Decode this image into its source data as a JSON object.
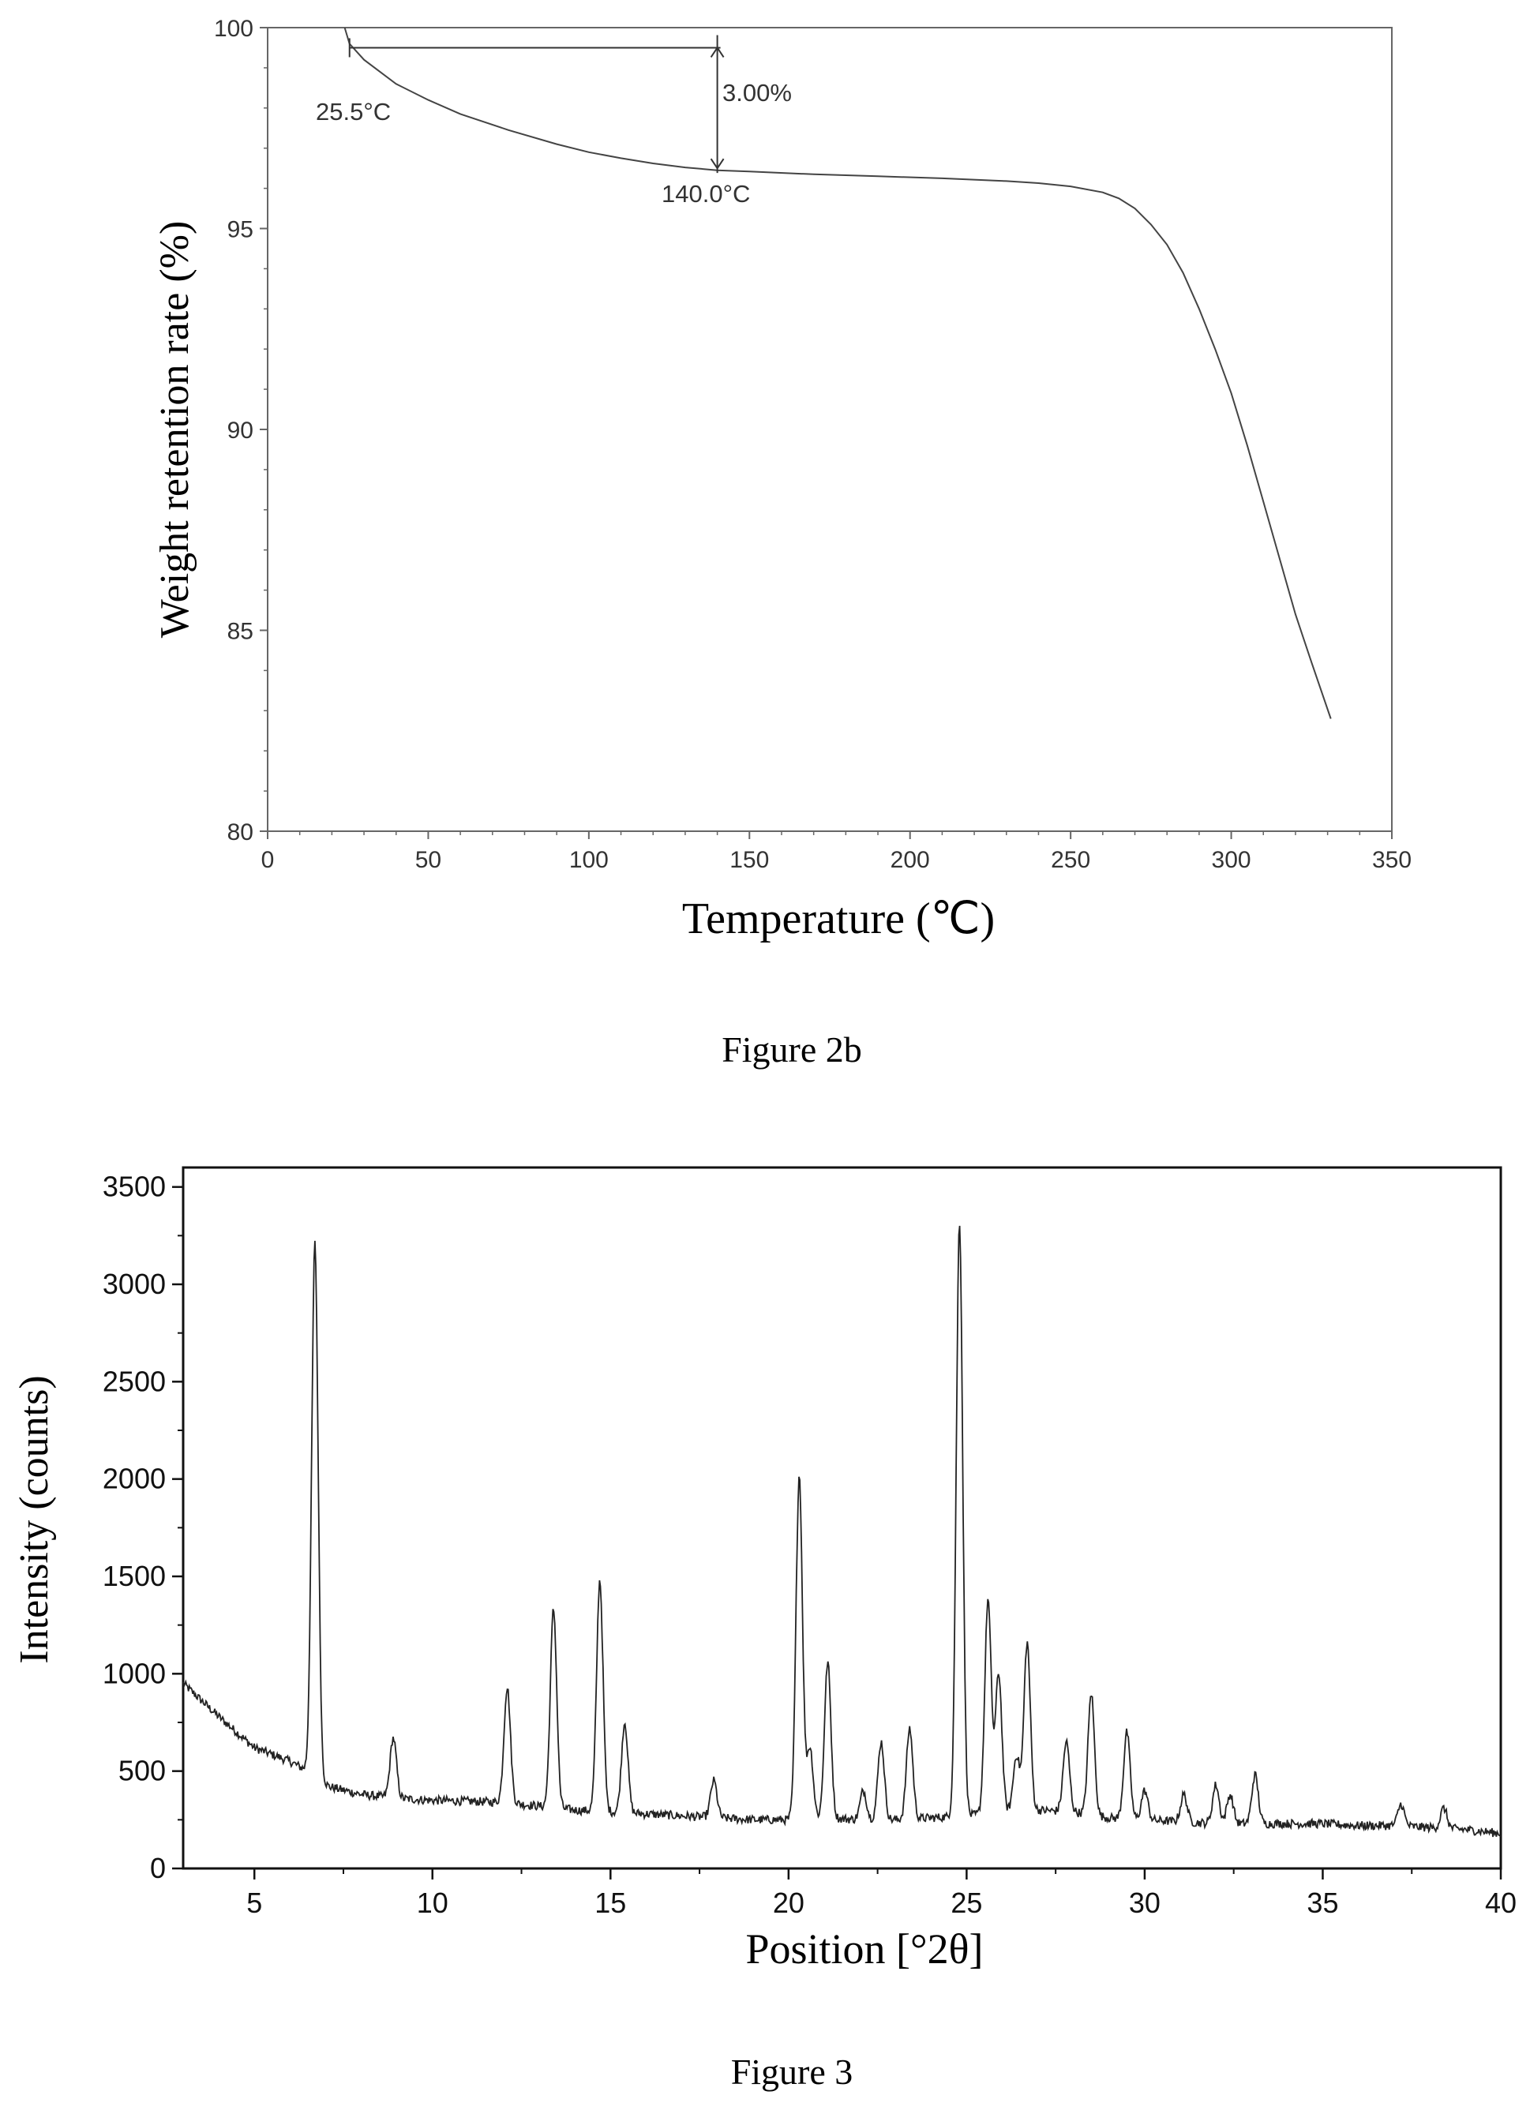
{
  "chart_data": [
    {
      "type": "line",
      "xlabel": "Temperature (℃)",
      "ylabel": "Weight retention rate (%)",
      "caption": "Figure 2b",
      "xlim": [
        0,
        350
      ],
      "ylim": [
        80,
        100
      ],
      "xticks": [
        0,
        50,
        100,
        150,
        200,
        250,
        300,
        350
      ],
      "yticks": [
        80,
        85,
        90,
        95,
        100
      ],
      "grid": false,
      "series": [
        {
          "x": [
            24,
            25.5,
            30,
            40,
            50,
            60,
            75,
            90,
            100,
            110,
            120,
            130,
            140,
            150,
            170,
            190,
            210,
            230,
            240,
            250,
            260,
            265,
            270,
            275,
            280,
            285,
            290,
            295,
            300,
            305,
            310,
            315,
            320,
            325,
            331
          ],
          "y": [
            100.0,
            99.6,
            99.2,
            98.6,
            98.2,
            97.85,
            97.45,
            97.1,
            96.9,
            96.75,
            96.62,
            96.52,
            96.45,
            96.42,
            96.35,
            96.3,
            96.25,
            96.18,
            96.13,
            96.05,
            95.9,
            95.75,
            95.5,
            95.1,
            94.6,
            93.9,
            93.0,
            92.0,
            90.9,
            89.6,
            88.2,
            86.8,
            85.4,
            84.2,
            82.8
          ]
        }
      ],
      "annotations": {
        "start_label": "25.5°C",
        "end_label": "140.0°C",
        "loss_label": "3.00%",
        "start_x": 25.5,
        "end_x": 140.0,
        "ref_y": 99.5,
        "end_y": 96.5
      }
    },
    {
      "type": "line",
      "xlabel": "Position [°2θ]",
      "ylabel": "Intensity (counts)",
      "caption": "Figure 3",
      "xlim": [
        3,
        40
      ],
      "ylim": [
        0,
        3600
      ],
      "xticks": [
        5,
        10,
        15,
        20,
        25,
        30,
        35,
        40
      ],
      "yticks": [
        0,
        500,
        1000,
        1500,
        2000,
        2500,
        3000,
        3500
      ],
      "grid": false,
      "series": [
        {
          "baseline": [
            [
              3,
              950
            ],
            [
              4,
              780
            ],
            [
              5,
              620
            ],
            [
              6,
              550
            ],
            [
              6.5,
              500
            ],
            [
              7.1,
              420
            ],
            [
              8,
              380
            ],
            [
              9,
              360
            ],
            [
              10,
              350
            ],
            [
              11,
              345
            ],
            [
              12,
              340
            ],
            [
              13,
              320
            ],
            [
              14,
              300
            ],
            [
              15,
              290
            ],
            [
              16,
              280
            ],
            [
              17,
              270
            ],
            [
              18,
              260
            ],
            [
              19,
              250
            ],
            [
              20,
              250
            ],
            [
              21,
              260
            ],
            [
              22,
              250
            ],
            [
              23,
              250
            ],
            [
              24,
              260
            ],
            [
              25,
              270
            ],
            [
              26,
              290
            ],
            [
              27,
              300
            ],
            [
              28,
              290
            ],
            [
              29,
              260
            ],
            [
              30,
              250
            ],
            [
              31,
              240
            ],
            [
              32,
              230
            ],
            [
              33,
              230
            ],
            [
              34,
              230
            ],
            [
              35,
              230
            ],
            [
              36,
              220
            ],
            [
              37,
              220
            ],
            [
              38,
              210
            ],
            [
              39,
              200
            ],
            [
              40,
              180
            ]
          ],
          "peaks": [
            {
              "x": 6.7,
              "y": 3210
            },
            {
              "x": 8.9,
              "y": 670
            },
            {
              "x": 12.1,
              "y": 930
            },
            {
              "x": 13.4,
              "y": 1330
            },
            {
              "x": 14.7,
              "y": 1480
            },
            {
              "x": 15.4,
              "y": 750
            },
            {
              "x": 17.9,
              "y": 450
            },
            {
              "x": 20.3,
              "y": 2020
            },
            {
              "x": 20.6,
              "y": 620
            },
            {
              "x": 21.1,
              "y": 1060
            },
            {
              "x": 22.1,
              "y": 400
            },
            {
              "x": 22.6,
              "y": 650
            },
            {
              "x": 23.4,
              "y": 720
            },
            {
              "x": 24.8,
              "y": 3320
            },
            {
              "x": 25.6,
              "y": 1380
            },
            {
              "x": 25.9,
              "y": 1000
            },
            {
              "x": 26.4,
              "y": 580
            },
            {
              "x": 26.7,
              "y": 1160
            },
            {
              "x": 27.8,
              "y": 650
            },
            {
              "x": 28.5,
              "y": 900
            },
            {
              "x": 29.5,
              "y": 700
            },
            {
              "x": 30.0,
              "y": 400
            },
            {
              "x": 31.1,
              "y": 380
            },
            {
              "x": 32.0,
              "y": 430
            },
            {
              "x": 32.4,
              "y": 380
            },
            {
              "x": 33.1,
              "y": 480
            },
            {
              "x": 37.2,
              "y": 330
            },
            {
              "x": 38.4,
              "y": 310
            }
          ]
        }
      ]
    }
  ]
}
